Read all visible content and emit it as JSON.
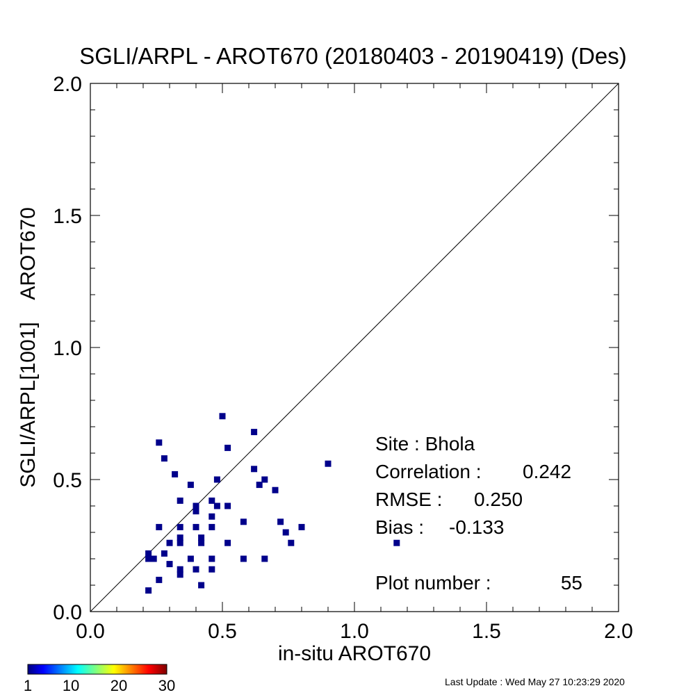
{
  "chart_data": {
    "type": "scatter",
    "title": "SGLI/ARPL - AROT670 (20180403 - 20190419) (Des)",
    "xlabel": "in-situ AROT670",
    "ylabel": "SGLI/ARPL[1001]    AROT670",
    "xlim": [
      0.0,
      2.0
    ],
    "ylim": [
      0.0,
      2.0
    ],
    "xticks": [
      "0.0",
      "0.5",
      "1.0",
      "1.5",
      "2.0"
    ],
    "yticks": [
      "0.0",
      "0.5",
      "1.0",
      "1.5",
      "2.0"
    ],
    "grid": false,
    "reference_line": "1:1",
    "point_color": "#00008b",
    "points": [
      [
        0.5,
        0.74
      ],
      [
        0.62,
        0.68
      ],
      [
        0.26,
        0.64
      ],
      [
        0.52,
        0.62
      ],
      [
        0.28,
        0.58
      ],
      [
        0.9,
        0.56
      ],
      [
        0.62,
        0.54
      ],
      [
        0.32,
        0.52
      ],
      [
        0.48,
        0.5
      ],
      [
        0.66,
        0.5
      ],
      [
        0.64,
        0.48
      ],
      [
        0.38,
        0.48
      ],
      [
        0.7,
        0.46
      ],
      [
        0.34,
        0.42
      ],
      [
        0.46,
        0.42
      ],
      [
        0.4,
        0.4
      ],
      [
        0.48,
        0.4
      ],
      [
        0.52,
        0.4
      ],
      [
        0.4,
        0.38
      ],
      [
        0.46,
        0.36
      ],
      [
        0.58,
        0.34
      ],
      [
        0.72,
        0.34
      ],
      [
        0.26,
        0.32
      ],
      [
        0.34,
        0.32
      ],
      [
        0.4,
        0.32
      ],
      [
        0.46,
        0.32
      ],
      [
        0.8,
        0.32
      ],
      [
        0.74,
        0.3
      ],
      [
        0.34,
        0.28
      ],
      [
        0.42,
        0.28
      ],
      [
        0.3,
        0.26
      ],
      [
        0.34,
        0.26
      ],
      [
        0.42,
        0.26
      ],
      [
        0.52,
        0.26
      ],
      [
        0.76,
        0.26
      ],
      [
        1.16,
        0.26
      ],
      [
        0.22,
        0.22
      ],
      [
        0.28,
        0.22
      ],
      [
        0.22,
        0.2
      ],
      [
        0.24,
        0.2
      ],
      [
        0.38,
        0.2
      ],
      [
        0.46,
        0.2
      ],
      [
        0.58,
        0.2
      ],
      [
        0.66,
        0.2
      ],
      [
        0.3,
        0.18
      ],
      [
        0.34,
        0.16
      ],
      [
        0.4,
        0.16
      ],
      [
        0.46,
        0.16
      ],
      [
        0.34,
        0.14
      ],
      [
        0.26,
        0.12
      ],
      [
        0.42,
        0.1
      ],
      [
        0.22,
        0.08
      ]
    ],
    "colorbar": {
      "ticks": [
        "1",
        "10",
        "20",
        "30"
      ],
      "min": 1,
      "max": 30
    }
  },
  "stats": {
    "site": "Site : Bhola",
    "correlation_label": "Correlation :",
    "correlation_value": "0.242",
    "rmse_label": "RMSE :",
    "rmse_value": "0.250",
    "bias_label": "Bias :",
    "bias_value": "-0.133",
    "plot_number_label": "Plot number :",
    "plot_number_value": "55"
  },
  "last_update": "Last Update : Wed May 27 10:23:29 2020"
}
